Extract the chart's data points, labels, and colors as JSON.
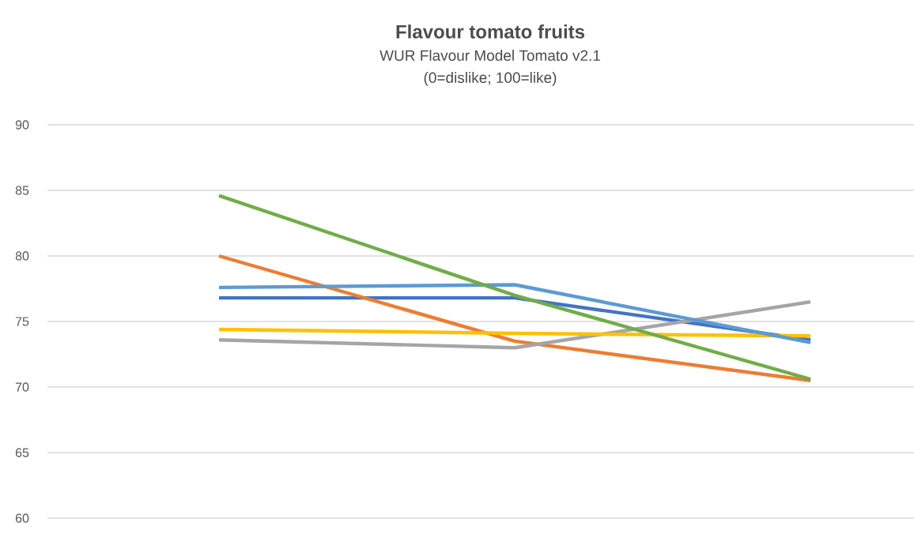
{
  "chart_data": {
    "type": "line",
    "title": "Flavour tomato fruits",
    "subtitle": "WUR Flavour Model Tomato v2.1",
    "annotations": [
      "(0=dislike; 100=like)"
    ],
    "categories": [
      null,
      null,
      null
    ],
    "series": [
      {
        "color": "#4472c4",
        "values": [
          76.8,
          76.8,
          73.6
        ]
      },
      {
        "color": "#ed7d31",
        "values": [
          80.0,
          73.5,
          70.5
        ]
      },
      {
        "color": "#a5a5a5",
        "values": [
          73.6,
          73.0,
          76.5
        ]
      },
      {
        "color": "#ffc000",
        "values": [
          74.4,
          74.1,
          73.9
        ]
      },
      {
        "color": "#5b9bd5",
        "values": [
          77.6,
          77.8,
          73.4
        ]
      },
      {
        "color": "#70ad47",
        "values": [
          84.6,
          77.0,
          70.6
        ]
      }
    ],
    "ylim": [
      60,
      90
    ],
    "yticks": [
      60,
      65,
      70,
      75,
      80,
      85,
      90
    ],
    "grid": "y",
    "marker": "none",
    "line_style": "solid"
  }
}
